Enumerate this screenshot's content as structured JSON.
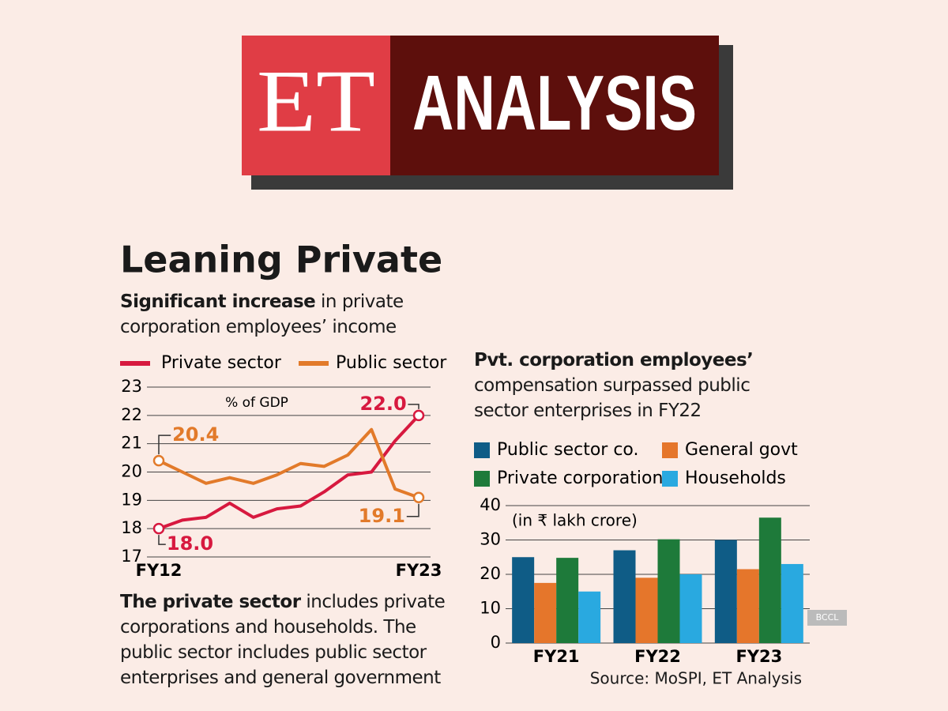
{
  "header": {
    "logo": "ET",
    "label": "ANALYSIS"
  },
  "title": "Leaning Private",
  "subtitle": {
    "bold": "Significant increase",
    "text": "in private corporation employees’ income"
  },
  "note": {
    "bold": "The private sector",
    "text": "includes private corporations and households. The public sector includes public sector enterprises and general government"
  },
  "source": "Source: MoSPI, ET Analysis",
  "watermark": "BCCL",
  "chart_data": [
    {
      "type": "line",
      "annotation": "% of GDP",
      "categories": [
        "FY12",
        null,
        null,
        null,
        null,
        null,
        null,
        null,
        null,
        null,
        null,
        "FY23"
      ],
      "series": [
        {
          "name": "Private sector",
          "color": "#d7193f",
          "values": [
            18.0,
            18.3,
            18.4,
            18.9,
            18.4,
            18.7,
            18.8,
            19.3,
            19.9,
            20.0,
            21.1,
            22.0
          ],
          "value_labels": [
            "18.0",
            null,
            null,
            null,
            null,
            null,
            null,
            null,
            null,
            null,
            null,
            "22.0"
          ]
        },
        {
          "name": "Public sector",
          "color": "#e27a2a",
          "values": [
            20.4,
            20.0,
            19.6,
            19.8,
            19.6,
            19.9,
            20.3,
            20.2,
            20.6,
            21.5,
            19.4,
            19.1
          ],
          "value_labels": [
            "20.4",
            null,
            null,
            null,
            null,
            null,
            null,
            null,
            null,
            null,
            null,
            "19.1"
          ]
        }
      ],
      "ylim": [
        17,
        23
      ],
      "yticks": [
        17,
        18,
        19,
        20,
        21,
        22,
        23
      ],
      "grid": true
    },
    {
      "type": "bar",
      "title_bold": "Pvt. corporation employees’",
      "title": "compensation surpassed public sector enterprises in FY22",
      "annotation": "(in ₹ lakh crore)",
      "categories": [
        "FY21",
        "FY22",
        "FY23"
      ],
      "series": [
        {
          "name": "Public sector co.",
          "color": "#0f5c86",
          "values": [
            25,
            27,
            30
          ]
        },
        {
          "name": "General govt",
          "color": "#e5762b",
          "values": [
            17.5,
            19,
            21.5
          ]
        },
        {
          "name": "Private corporations",
          "color": "#1e7a3a",
          "values": [
            24.8,
            30.2,
            36.5
          ]
        },
        {
          "name": "Households",
          "color": "#29a9e0",
          "values": [
            15,
            20,
            23
          ]
        }
      ],
      "ylim": [
        0,
        40
      ],
      "yticks": [
        0,
        10,
        20,
        30,
        40
      ],
      "grid": true
    }
  ]
}
